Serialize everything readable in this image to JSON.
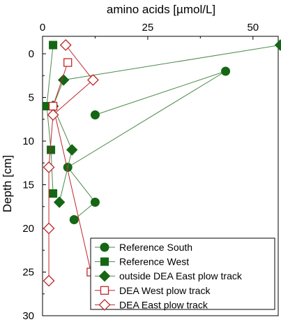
{
  "chart_data": {
    "type": "scatter",
    "title": "",
    "xlabel": "amino acids [µmol/L]",
    "ylabel": "Depth [cm]",
    "xlim": [
      0,
      56
    ],
    "ylim": [
      -2,
      30
    ],
    "y_inverted": true,
    "x_axis_position": "top",
    "x_ticks": [
      0,
      25,
      50
    ],
    "y_ticks": [
      0,
      5,
      10,
      15,
      20,
      25,
      30
    ],
    "grid": false,
    "legend_position": "bottom-right",
    "series": [
      {
        "name": "Reference South",
        "marker": "circle",
        "filled": true,
        "color": "#156615",
        "line_color": "#4a8a4a",
        "points": [
          [
            12.5,
            7
          ],
          [
            43.5,
            2
          ],
          [
            6,
            13
          ],
          [
            12.5,
            17
          ],
          [
            7.5,
            19
          ]
        ]
      },
      {
        "name": "Reference West",
        "marker": "square",
        "filled": true,
        "color": "#156615",
        "line_color": "#4a8a4a",
        "points": [
          [
            2.5,
            -1
          ],
          [
            1,
            6
          ],
          [
            2,
            11
          ],
          [
            2.5,
            16
          ]
        ]
      },
      {
        "name": "outside DEA East plow track",
        "marker": "diamond",
        "filled": true,
        "color": "#156615",
        "line_color": "#4a8a4a",
        "points": [
          [
            56.5,
            -1
          ],
          [
            5,
            3
          ],
          [
            2.5,
            6
          ],
          [
            7,
            11
          ],
          [
            4,
            17
          ]
        ]
      },
      {
        "name": "DEA West plow track",
        "marker": "square",
        "filled": false,
        "color": "#c0262b",
        "line_color": "#c0262b",
        "points": [
          [
            6,
            1
          ],
          [
            2.5,
            6
          ],
          [
            11.5,
            25
          ]
        ]
      },
      {
        "name": "DEA East plow track",
        "marker": "diamond",
        "filled": false,
        "color": "#c0262b",
        "line_color": "#c0262b",
        "points": [
          [
            5.5,
            -1
          ],
          [
            12,
            3
          ],
          [
            2.5,
            7
          ],
          [
            1.5,
            13
          ],
          [
            1.5,
            20
          ],
          [
            1.5,
            26
          ]
        ]
      }
    ]
  }
}
